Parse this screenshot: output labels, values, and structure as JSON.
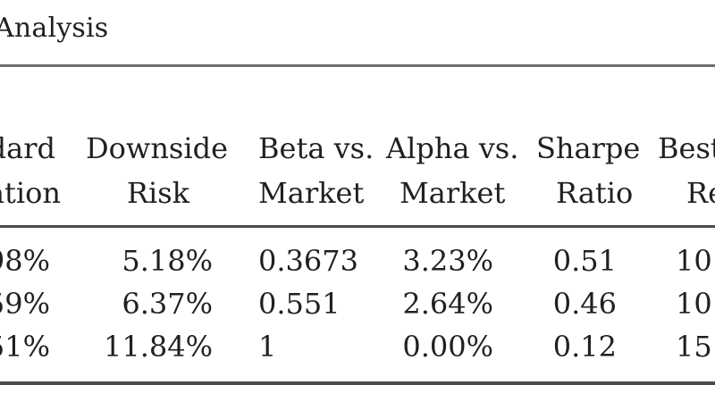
{
  "title": "Analysis",
  "headers": [
    {
      "line1": "dard",
      "line2": "ation"
    },
    {
      "line1": "Downside",
      "line2": "Risk"
    },
    {
      "line1": "Beta vs.",
      "line2": "Market"
    },
    {
      "line1": "Alpha vs.",
      "line2": "Market"
    },
    {
      "line1": "Sharpe",
      "line2": "Ratio"
    },
    {
      "line1": "Best",
      "line2": "Re"
    }
  ],
  "rows": [
    [
      "98%",
      "5.18%",
      "0.3673",
      "3.23%",
      "0.51",
      "10"
    ],
    [
      "59%",
      "6.37%",
      "0.551",
      "2.64%",
      "0.46",
      "10"
    ],
    [
      "51%",
      "11.84%",
      "1",
      "0.00%",
      "0.12",
      "15"
    ]
  ]
}
